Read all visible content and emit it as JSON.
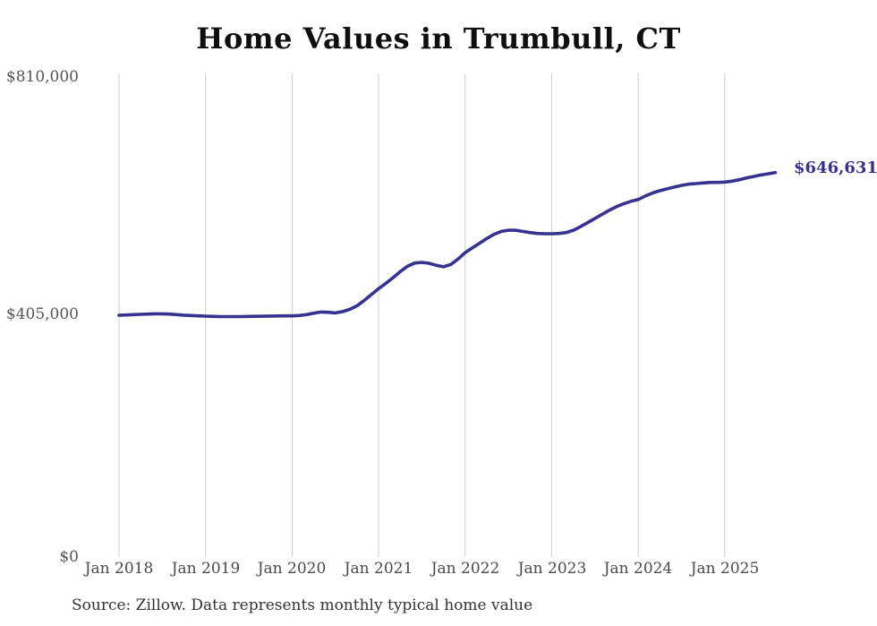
{
  "title": "Home Values in Trumbull, CT",
  "source_note": "Source: Zillow. Data represents monthly typical home value",
  "end_label": "$646,631",
  "colors": {
    "line": "#37328f",
    "grid": "#cccccc",
    "axis_label": "#4f4f4f",
    "title": "#0f0f0f",
    "end_label": "#37328f",
    "source": "#333333",
    "background": "#ffffff"
  },
  "chart_data": {
    "type": "line",
    "title": "Home Values in Trumbull, CT",
    "xlabel": "",
    "ylabel": "",
    "ylim": [
      0,
      810000
    ],
    "grid": "vertical-only",
    "legend": "none",
    "y_tick_labels": [
      "$810,000",
      "$405,000",
      "$0"
    ],
    "x_tick_labels": [
      "Jan 2018",
      "Jan 2019",
      "Jan 2020",
      "Jan 2021",
      "Jan 2022",
      "Jan 2023",
      "Jan 2024",
      "Jan 2025"
    ],
    "end_value": 646631,
    "series": [
      {
        "name": "Monthly typical home value",
        "x": [
          "2018-01",
          "2018-02",
          "2018-03",
          "2018-04",
          "2018-05",
          "2018-06",
          "2018-07",
          "2018-08",
          "2018-09",
          "2018-10",
          "2018-11",
          "2018-12",
          "2019-01",
          "2019-02",
          "2019-03",
          "2019-04",
          "2019-05",
          "2019-06",
          "2019-07",
          "2019-08",
          "2019-09",
          "2019-10",
          "2019-11",
          "2019-12",
          "2020-01",
          "2020-02",
          "2020-03",
          "2020-04",
          "2020-05",
          "2020-06",
          "2020-07",
          "2020-08",
          "2020-09",
          "2020-10",
          "2020-11",
          "2020-12",
          "2021-01",
          "2021-02",
          "2021-03",
          "2021-04",
          "2021-05",
          "2021-06",
          "2021-07",
          "2021-08",
          "2021-09",
          "2021-10",
          "2021-11",
          "2021-12",
          "2022-01",
          "2022-02",
          "2022-03",
          "2022-04",
          "2022-05",
          "2022-06",
          "2022-07",
          "2022-08",
          "2022-09",
          "2022-10",
          "2022-11",
          "2022-12",
          "2023-01",
          "2023-02",
          "2023-03",
          "2023-04",
          "2023-05",
          "2023-06",
          "2023-07",
          "2023-08",
          "2023-09",
          "2023-10",
          "2023-11",
          "2023-12",
          "2024-01",
          "2024-02",
          "2024-03",
          "2024-04",
          "2024-05",
          "2024-06",
          "2024-07",
          "2024-08",
          "2024-09",
          "2024-10",
          "2024-11",
          "2024-12",
          "2025-01",
          "2025-02",
          "2025-03",
          "2025-04",
          "2025-05",
          "2025-06",
          "2025-07",
          "2025-08"
        ],
        "values": [
          405000,
          405500,
          406000,
          406500,
          407000,
          407500,
          407500,
          407000,
          406000,
          405200,
          404600,
          404000,
          403500,
          403000,
          402800,
          402700,
          402700,
          402800,
          403000,
          403200,
          403400,
          403600,
          403800,
          404000,
          404000,
          404500,
          406000,
          408500,
          410500,
          410000,
          409000,
          411000,
          415000,
          421000,
          430000,
          440000,
          450000,
          459000,
          468500,
          479000,
          488000,
          493500,
          494500,
          493000,
          489500,
          487000,
          491000,
          500000,
          511000,
          519000,
          527000,
          535000,
          542000,
          547000,
          549000,
          549000,
          547000,
          545000,
          543500,
          543000,
          543000,
          543500,
          545000,
          549000,
          555000,
          562000,
          569000,
          576000,
          583000,
          589000,
          594000,
          598000,
          601000,
          607000,
          612000,
          616000,
          619000,
          622000,
          625000,
          627000,
          628000,
          629000,
          630000,
          630000,
          630500,
          632000,
          634500,
          637500,
          640000,
          642500,
          644500,
          646631
        ]
      }
    ]
  }
}
